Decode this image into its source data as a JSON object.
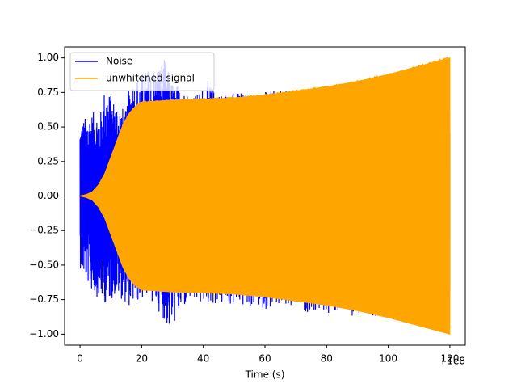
{
  "chart_data": {
    "type": "line",
    "title": "",
    "xlabel": "Time (s)",
    "ylabel": "",
    "x_offset_label": "+1e8",
    "xlim": [
      -5,
      125
    ],
    "ylim": [
      -1.08,
      1.08
    ],
    "x_ticks": [
      0,
      20,
      40,
      60,
      80,
      100,
      120
    ],
    "x_tick_labels": [
      "0",
      "20",
      "40",
      "60",
      "80",
      "100",
      "120"
    ],
    "y_ticks": [
      -1.0,
      -0.75,
      -0.5,
      -0.25,
      0.0,
      0.25,
      0.5,
      0.75,
      1.0
    ],
    "y_tick_labels": [
      "−1.00",
      "−0.75",
      "−0.50",
      "−0.25",
      "0.00",
      "0.25",
      "0.50",
      "0.75",
      "1.00"
    ],
    "grid": false,
    "legend_position": "top-left",
    "series": [
      {
        "name": "Noise",
        "color": "#0000ff",
        "x_range": [
          0,
          120
        ],
        "amplitude_envelope_peaks": [
          {
            "x": 0,
            "y": 0.53
          },
          {
            "x": 3,
            "y": 0.6
          },
          {
            "x": 7,
            "y": 0.62
          },
          {
            "x": 8,
            "y": 0.8
          },
          {
            "x": 11,
            "y": 0.7
          },
          {
            "x": 15,
            "y": 0.62
          },
          {
            "x": 16,
            "y": 0.85
          },
          {
            "x": 28,
            "y": 1.0
          },
          {
            "x": 29,
            "y": 0.85
          },
          {
            "x": 34,
            "y": 0.78
          },
          {
            "x": 38,
            "y": 0.74
          },
          {
            "x": 41,
            "y": 0.85
          },
          {
            "x": 44,
            "y": 0.76
          }
        ],
        "amplitude_envelope_troughs": [
          {
            "x": 0,
            "y": -0.52
          },
          {
            "x": 4,
            "y": -0.7
          },
          {
            "x": 8,
            "y": -0.78
          },
          {
            "x": 12,
            "y": -0.72
          },
          {
            "x": 16,
            "y": -0.8
          },
          {
            "x": 22,
            "y": -0.73
          },
          {
            "x": 26,
            "y": -0.85
          },
          {
            "x": 29,
            "y": -0.98
          },
          {
            "x": 35,
            "y": -0.78
          },
          {
            "x": 44,
            "y": -0.79
          },
          {
            "x": 90,
            "y": -0.87
          }
        ]
      },
      {
        "name": "unwhitened signal",
        "color": "#ffa500",
        "x_range": [
          0,
          120
        ],
        "amplitude_envelope": [
          {
            "x": 0,
            "y": 0.0
          },
          {
            "x": 2,
            "y": 0.01
          },
          {
            "x": 4,
            "y": 0.03
          },
          {
            "x": 6,
            "y": 0.08
          },
          {
            "x": 8,
            "y": 0.16
          },
          {
            "x": 10,
            "y": 0.28
          },
          {
            "x": 12,
            "y": 0.4
          },
          {
            "x": 14,
            "y": 0.52
          },
          {
            "x": 16,
            "y": 0.6
          },
          {
            "x": 18,
            "y": 0.65
          },
          {
            "x": 20,
            "y": 0.68
          },
          {
            "x": 30,
            "y": 0.695
          },
          {
            "x": 40,
            "y": 0.7
          },
          {
            "x": 50,
            "y": 0.71
          },
          {
            "x": 60,
            "y": 0.73
          },
          {
            "x": 70,
            "y": 0.76
          },
          {
            "x": 80,
            "y": 0.79
          },
          {
            "x": 90,
            "y": 0.83
          },
          {
            "x": 100,
            "y": 0.88
          },
          {
            "x": 110,
            "y": 0.94
          },
          {
            "x": 120,
            "y": 1.0
          }
        ]
      }
    ]
  }
}
